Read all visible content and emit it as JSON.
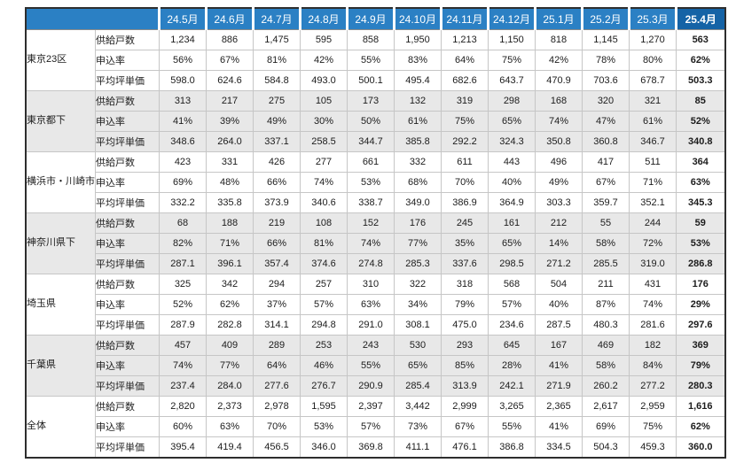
{
  "colors": {
    "header_blue": "#2B80C4",
    "header_highlight_navy": "#1563A6",
    "band_gray": "#E8E8E8",
    "band_white": "#FFFFFF",
    "outer_border": "#2E2E2E",
    "total_rule_black": "#111111",
    "header_text": "#FFFFFF"
  },
  "chart_data": {
    "type": "table",
    "title": "",
    "highlight_month": "25.4月",
    "months": [
      "24.5月",
      "24.6月",
      "24.7月",
      "24.8月",
      "24.9月",
      "24.10月",
      "24.11月",
      "24.12月",
      "25.1月",
      "25.2月",
      "25.3月",
      "25.4月"
    ],
    "metric_labels": [
      "供給戸数",
      "申込率",
      "平均坪単価"
    ],
    "regions": [
      {
        "name": "東京23区",
        "rows": [
          {
            "label": "供給戸数",
            "values": [
              "1,234",
              "886",
              "1,475",
              "595",
              "858",
              "1,950",
              "1,213",
              "1,150",
              "818",
              "1,145",
              "1,270",
              "563"
            ]
          },
          {
            "label": "申込率",
            "values": [
              "56%",
              "67%",
              "81%",
              "42%",
              "55%",
              "83%",
              "64%",
              "75%",
              "42%",
              "78%",
              "80%",
              "62%"
            ]
          },
          {
            "label": "平均坪単価",
            "values": [
              "598.0",
              "624.6",
              "584.8",
              "493.0",
              "500.1",
              "495.4",
              "682.6",
              "643.7",
              "470.9",
              "703.6",
              "678.7",
              "503.3"
            ]
          }
        ]
      },
      {
        "name": "東京都下",
        "rows": [
          {
            "label": "供給戸数",
            "values": [
              "313",
              "217",
              "275",
              "105",
              "173",
              "132",
              "319",
              "298",
              "168",
              "320",
              "321",
              "85"
            ]
          },
          {
            "label": "申込率",
            "values": [
              "41%",
              "39%",
              "49%",
              "30%",
              "50%",
              "61%",
              "75%",
              "65%",
              "74%",
              "47%",
              "61%",
              "52%"
            ]
          },
          {
            "label": "平均坪単価",
            "values": [
              "348.6",
              "264.0",
              "337.1",
              "258.5",
              "344.7",
              "385.8",
              "292.2",
              "324.3",
              "350.8",
              "360.8",
              "346.7",
              "340.8"
            ]
          }
        ]
      },
      {
        "name": "横浜市・川崎市",
        "rows": [
          {
            "label": "供給戸数",
            "values": [
              "423",
              "331",
              "426",
              "277",
              "661",
              "332",
              "611",
              "443",
              "496",
              "417",
              "511",
              "364"
            ]
          },
          {
            "label": "申込率",
            "values": [
              "69%",
              "48%",
              "66%",
              "74%",
              "53%",
              "68%",
              "70%",
              "40%",
              "49%",
              "67%",
              "71%",
              "63%"
            ]
          },
          {
            "label": "平均坪単価",
            "values": [
              "332.2",
              "335.8",
              "373.9",
              "340.6",
              "338.7",
              "349.0",
              "386.9",
              "364.9",
              "303.3",
              "359.7",
              "352.1",
              "345.3"
            ]
          }
        ]
      },
      {
        "name": "神奈川県下",
        "rows": [
          {
            "label": "供給戸数",
            "values": [
              "68",
              "188",
              "219",
              "108",
              "152",
              "176",
              "245",
              "161",
              "212",
              "55",
              "244",
              "59"
            ]
          },
          {
            "label": "申込率",
            "values": [
              "82%",
              "71%",
              "66%",
              "81%",
              "74%",
              "77%",
              "35%",
              "65%",
              "14%",
              "58%",
              "72%",
              "53%"
            ]
          },
          {
            "label": "平均坪単価",
            "values": [
              "287.1",
              "396.1",
              "357.4",
              "374.6",
              "274.8",
              "285.3",
              "337.6",
              "298.5",
              "271.2",
              "285.5",
              "319.0",
              "286.8"
            ]
          }
        ]
      },
      {
        "name": "埼玉県",
        "rows": [
          {
            "label": "供給戸数",
            "values": [
              "325",
              "342",
              "294",
              "257",
              "310",
              "322",
              "318",
              "568",
              "504",
              "211",
              "431",
              "176"
            ]
          },
          {
            "label": "申込率",
            "values": [
              "52%",
              "62%",
              "37%",
              "57%",
              "63%",
              "34%",
              "79%",
              "57%",
              "40%",
              "87%",
              "74%",
              "29%"
            ]
          },
          {
            "label": "平均坪単価",
            "values": [
              "287.9",
              "282.8",
              "314.1",
              "294.8",
              "291.0",
              "308.1",
              "475.0",
              "234.6",
              "287.5",
              "480.3",
              "281.6",
              "297.6"
            ]
          }
        ]
      },
      {
        "name": "千葉県",
        "rows": [
          {
            "label": "供給戸数",
            "values": [
              "457",
              "409",
              "289",
              "253",
              "243",
              "530",
              "293",
              "645",
              "167",
              "469",
              "182",
              "369"
            ]
          },
          {
            "label": "申込率",
            "values": [
              "74%",
              "77%",
              "64%",
              "46%",
              "55%",
              "65%",
              "85%",
              "28%",
              "41%",
              "58%",
              "84%",
              "79%"
            ]
          },
          {
            "label": "平均坪単価",
            "values": [
              "237.4",
              "284.0",
              "277.6",
              "276.7",
              "290.9",
              "285.4",
              "313.9",
              "242.1",
              "271.9",
              "260.2",
              "277.2",
              "280.3"
            ]
          }
        ]
      },
      {
        "name": "全体",
        "rows": [
          {
            "label": "供給戸数",
            "values": [
              "2,820",
              "2,373",
              "2,978",
              "1,595",
              "2,397",
              "3,442",
              "2,999",
              "3,265",
              "2,365",
              "2,617",
              "2,959",
              "1,616"
            ]
          },
          {
            "label": "申込率",
            "values": [
              "60%",
              "63%",
              "70%",
              "53%",
              "57%",
              "73%",
              "67%",
              "55%",
              "41%",
              "69%",
              "75%",
              "62%"
            ]
          },
          {
            "label": "平均坪単価",
            "values": [
              "395.4",
              "419.4",
              "456.5",
              "346.0",
              "369.8",
              "411.1",
              "476.1",
              "386.8",
              "334.5",
              "504.3",
              "459.3",
              "360.0"
            ]
          }
        ]
      }
    ]
  }
}
